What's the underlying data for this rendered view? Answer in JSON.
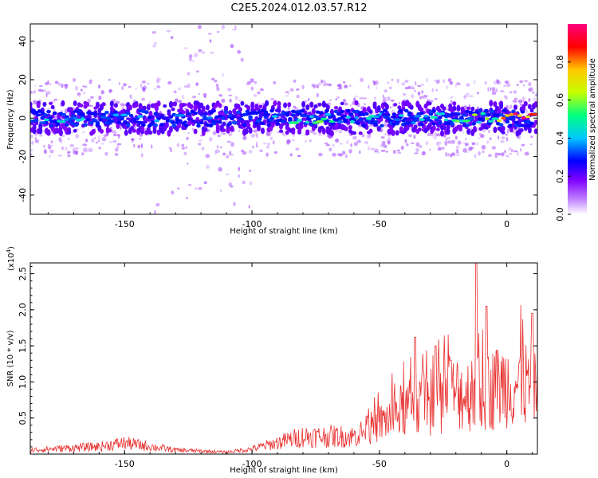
{
  "title": "C2E5.2024.012.03.57.R12",
  "chart_data": [
    {
      "type": "heatmap",
      "xlabel": "Height of straight line (km)",
      "ylabel": "Frequency (Hz)",
      "xlim": [
        -187,
        12
      ],
      "ylim": [
        -50,
        49
      ],
      "xticks": [
        -150,
        -100,
        -50,
        0
      ],
      "yticks": [
        -40,
        -20,
        0,
        20,
        40
      ],
      "colorbar": {
        "label": "Normalized spectral amplitude",
        "range": [
          0,
          1
        ],
        "ticks": [
          "0.0",
          "0.2",
          "0.4",
          "0.6",
          "0.8"
        ],
        "colormap": [
          "#ffffff",
          "#7f00ff",
          "#0000ff",
          "#00c8ff",
          "#00ff80",
          "#c8ff00",
          "#ffc800",
          "#ff0000",
          "#ff0080"
        ]
      },
      "band": {
        "center_hz": 0,
        "halfwidth_hz": 5,
        "description_points": [
          {
            "x": -180,
            "amp": 0.45
          },
          {
            "x": -150,
            "amp": 0.35
          },
          {
            "x": -100,
            "amp": 0.3
          },
          {
            "x": -80,
            "amp": 0.55
          },
          {
            "x": -50,
            "amp": 0.4
          },
          {
            "x": -30,
            "amp": 0.4
          },
          {
            "x": -10,
            "amp": 0.6
          },
          {
            "x": 5,
            "amp": 0.9
          }
        ]
      }
    },
    {
      "type": "line",
      "xlabel": "Height of straight line (km)",
      "ylabel": "SNR (10 * v/v)",
      "yexp_label": "(x10",
      "yexp_power": "4",
      "xlim": [
        -187,
        12
      ],
      "ylim": [
        0,
        2.65
      ],
      "xticks": [
        -150,
        -100,
        -50,
        0
      ],
      "yticks": [
        "0.5",
        "1.0",
        "1.5",
        "2.0",
        "2.5"
      ],
      "color": "#e8302f",
      "envelope": [
        {
          "x": -187,
          "y": 0.08
        },
        {
          "x": -160,
          "y": 0.15
        },
        {
          "x": -150,
          "y": 0.22
        },
        {
          "x": -130,
          "y": 0.08
        },
        {
          "x": -110,
          "y": 0.04
        },
        {
          "x": -100,
          "y": 0.1
        },
        {
          "x": -80,
          "y": 0.35
        },
        {
          "x": -60,
          "y": 0.35
        },
        {
          "x": -50,
          "y": 0.6
        },
        {
          "x": -40,
          "y": 0.9
        },
        {
          "x": -30,
          "y": 1.0
        },
        {
          "x": -20,
          "y": 1.2
        },
        {
          "x": -10,
          "y": 1.2
        },
        {
          "x": 0,
          "y": 1.4
        },
        {
          "x": 12,
          "y": 1.35
        }
      ],
      "peaks": [
        {
          "x": -36,
          "y": 1.62
        },
        {
          "x": -28,
          "y": 1.5
        },
        {
          "x": -22,
          "y": 1.3
        },
        {
          "x": -12,
          "y": 2.65
        },
        {
          "x": -8,
          "y": 2.05
        },
        {
          "x": 10,
          "y": 1.95
        }
      ]
    }
  ]
}
